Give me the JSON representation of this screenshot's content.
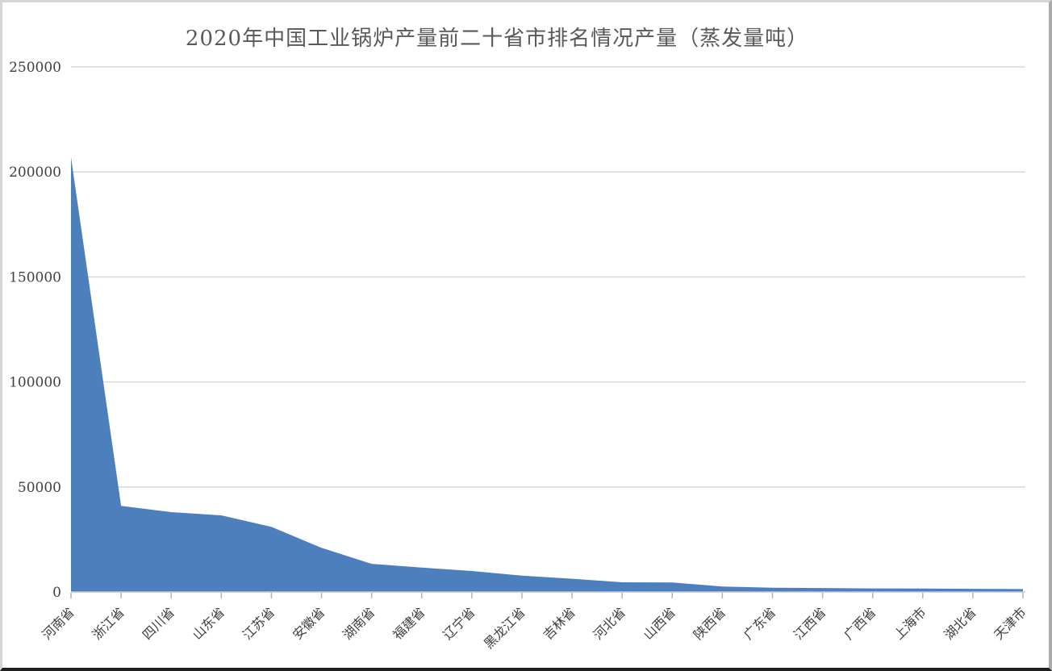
{
  "colors": {
    "area": "#4e7fbd",
    "gridline": "#d9d9d9",
    "axis_line": "#c6c6c6",
    "tick_mark": "#b3b3b3",
    "title_text": "#595959",
    "axis_text": "#404040",
    "background": "#ffffff"
  },
  "chart_data": {
    "type": "area",
    "title": "2020年中国工业锅炉产量前二十省市排名情况产量（蒸发量吨）",
    "xlabel": "",
    "ylabel": "",
    "categories": [
      "河南省",
      "浙江省",
      "四川省",
      "山东省",
      "江苏省",
      "安徽省",
      "湖南省",
      "福建省",
      "辽宁省",
      "黑龙江省",
      "吉林省",
      "河北省",
      "山西省",
      "陕西省",
      "广东省",
      "江西省",
      "广西省",
      "上海市",
      "湖北省",
      "天津市"
    ],
    "values": [
      207000,
      41000,
      38000,
      36500,
      31000,
      21000,
      13400,
      11600,
      10000,
      7800,
      6300,
      4600,
      4500,
      2600,
      2000,
      1900,
      1700,
      1600,
      1500,
      1400
    ],
    "ylim": [
      0,
      250000
    ],
    "yticks": [
      0,
      50000,
      100000,
      150000,
      200000,
      250000
    ],
    "grid": true,
    "legend": "none",
    "x_tick_rotation_deg": 45
  }
}
